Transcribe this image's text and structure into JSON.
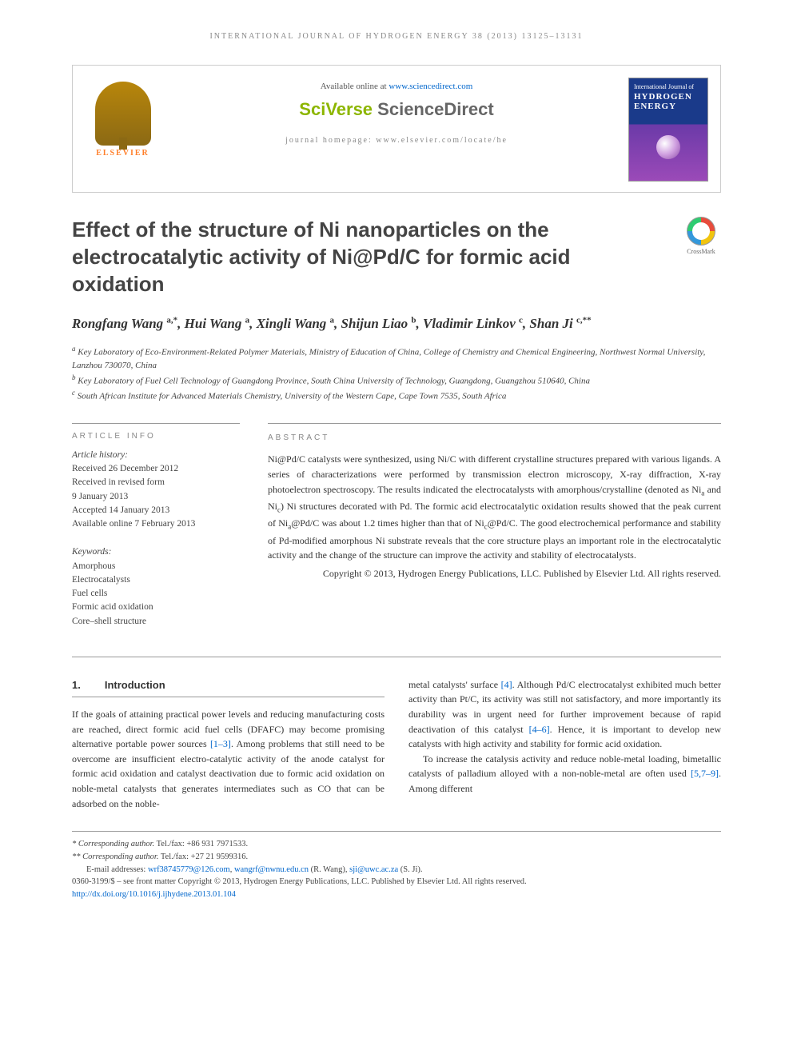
{
  "running_header": "INTERNATIONAL JOURNAL OF HYDROGEN ENERGY 38 (2013) 13125–13131",
  "topbox": {
    "available_prefix": "Available online at ",
    "available_link": "www.sciencedirect.com",
    "sv_sci": "SciVerse ",
    "sv_direct": "ScienceDirect",
    "homepage_prefix": "journal homepage: ",
    "homepage_link": "www.elsevier.com/locate/he",
    "elsevier": "ELSEVIER",
    "cover_line1": "International Journal of",
    "cover_line2": "HYDROGEN",
    "cover_line3": "ENERGY"
  },
  "title": "Effect of the structure of Ni nanoparticles on the electrocatalytic activity of Ni@Pd/C for formic acid oxidation",
  "crossmark": "CrossMark",
  "authors_html": "Rongfang Wang <sup>a,*</sup>, Hui Wang <sup>a</sup>, Xingli Wang <sup>a</sup>, Shijun Liao <sup>b</sup>, Vladimir Linkov <sup>c</sup>, Shan Ji <sup>c,**</sup>",
  "affiliations": {
    "a": "Key Laboratory of Eco-Environment-Related Polymer Materials, Ministry of Education of China, College of Chemistry and Chemical Engineering, Northwest Normal University, Lanzhou 730070, China",
    "b": "Key Laboratory of Fuel Cell Technology of Guangdong Province, South China University of Technology, Guangdong, Guangzhou 510640, China",
    "c": "South African Institute for Advanced Materials Chemistry, University of the Western Cape, Cape Town 7535, South Africa"
  },
  "info": {
    "head": "ARTICLE INFO",
    "history_label": "Article history:",
    "history": [
      "Received 26 December 2012",
      "Received in revised form",
      "9 January 2013",
      "Accepted 14 January 2013",
      "Available online 7 February 2013"
    ],
    "keywords_label": "Keywords:",
    "keywords": [
      "Amorphous",
      "Electrocatalysts",
      "Fuel cells",
      "Formic acid oxidation",
      "Core–shell structure"
    ]
  },
  "abstract": {
    "head": "ABSTRACT",
    "text_html": "Ni@Pd/C catalysts were synthesized, using Ni/C with different crystalline structures prepared with various ligands. A series of characterizations were performed by transmission electron microscopy, X-ray diffraction, X-ray photoelectron spectroscopy. The results indicated the electrocatalysts with amorphous/crystalline (denoted as Ni<sub>a</sub> and Ni<sub>c</sub>) Ni structures decorated with Pd. The formic acid electrocatalytic oxidation results showed that the peak current of Ni<sub>a</sub>@Pd/C was about 1.2 times higher than that of Ni<sub>c</sub>@Pd/C. The good electrochemical performance and stability of Pd-modified amorphous Ni substrate reveals that the core structure plays an important role in the electrocatalytic activity and the change of the structure can improve the activity and stability of electrocatalysts.",
    "copyright": "Copyright © 2013, Hydrogen Energy Publications, LLC. Published by Elsevier Ltd. All rights reserved."
  },
  "section1": {
    "num": "1.",
    "title": "Introduction",
    "col1_p1_html": "If the goals of attaining practical power levels and reducing manufacturing costs are reached, direct formic acid fuel cells (DFAFC) may become promising alternative portable power sources <span class=\"cite\">[1–3]</span>. Among problems that still need to be overcome are insufficient electro-catalytic activity of the anode catalyst for formic acid oxidation and catalyst deactivation due to formic acid oxidation on noble-metal catalysts that generates intermediates such as CO that can be adsorbed on the noble-",
    "col2_p1_html": "metal catalysts' surface <span class=\"cite\">[4]</span>. Although Pd/C electrocatalyst exhibited much better activity than Pt/C, its activity was still not satisfactory, and more importantly its durability was in urgent need for further improvement because of rapid deactivation of this catalyst <span class=\"cite\">[4–6]</span>. Hence, it is important to develop new catalysts with high activity and stability for formic acid oxidation.",
    "col2_p2_html": "To increase the catalysis activity and reduce noble-metal loading, bimetallic catalysts of palladium alloyed with a non-noble-metal are often used <span class=\"cite\">[5,7–9]</span>. Among different"
  },
  "footnotes": {
    "corr1_label": "* Corresponding author.",
    "corr1_tel": " Tel./fax: +86 931 7971533.",
    "corr2_label": "** Corresponding author.",
    "corr2_tel": " Tel./fax: +27 21 9599316.",
    "email_label": "E-mail addresses: ",
    "email1": "wrf38745779@126.com",
    "email1_sep": ", ",
    "email2": "wangrf@nwnu.edu.cn",
    "email2_after": " (R. Wang), ",
    "email3": "sji@uwc.ac.za",
    "email3_after": " (S. Ji).",
    "issn_line": "0360-3199/$ – see front matter Copyright © 2013, Hydrogen Energy Publications, LLC. Published by Elsevier Ltd. All rights reserved.",
    "doi": "http://dx.doi.org/10.1016/j.ijhydene.2013.01.104"
  }
}
